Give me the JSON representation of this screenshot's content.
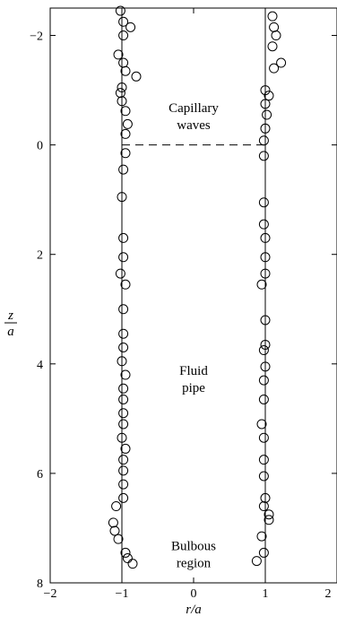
{
  "chart_data": {
    "type": "scatter",
    "title": "",
    "xlabel": "r/a",
    "ylabel_num": "z",
    "ylabel_den": "a",
    "xlim": [
      -2,
      2
    ],
    "ylim": [
      8,
      -2.5
    ],
    "y_inverted": true,
    "grid": false,
    "legend": "none",
    "x_ticks": [
      "−2",
      "−1",
      "0",
      "1",
      "2"
    ],
    "x_tick_values": [
      -2,
      -1,
      0,
      1,
      2
    ],
    "y_ticks": [
      "−2",
      "0",
      "2",
      "4",
      "6",
      "8"
    ],
    "y_tick_values": [
      -2,
      0,
      2,
      4,
      6,
      8
    ],
    "reference_lines": [
      {
        "style": "solid",
        "x": -1
      },
      {
        "style": "solid",
        "x": 1
      },
      {
        "style": "dashed",
        "y": 0,
        "x_range": [
          -1,
          1
        ]
      }
    ],
    "annotations": [
      {
        "lines": [
          "Capillary",
          "waves"
        ],
        "x": 0,
        "y": -0.6
      },
      {
        "lines": [
          "Fluid",
          "pipe"
        ],
        "x": 0,
        "y": 4.2
      },
      {
        "lines": [
          "Bulbous",
          "region"
        ],
        "x": 0,
        "y": 7.4
      }
    ],
    "series": [
      {
        "marker": "open-circle",
        "points": [
          [
            -1.02,
            -2.45
          ],
          [
            -0.98,
            -2.25
          ],
          [
            -0.88,
            -2.15
          ],
          [
            -0.98,
            -2.0
          ],
          [
            -1.05,
            -1.65
          ],
          [
            -0.98,
            -1.5
          ],
          [
            -0.95,
            -1.35
          ],
          [
            -0.8,
            -1.25
          ],
          [
            -1.0,
            -1.05
          ],
          [
            -1.02,
            -0.95
          ],
          [
            -1.0,
            -0.8
          ],
          [
            -0.95,
            -0.62
          ],
          [
            -0.92,
            -0.38
          ],
          [
            -0.95,
            -0.2
          ],
          [
            -0.95,
            0.15
          ],
          [
            -0.98,
            0.45
          ],
          [
            -1.0,
            0.95
          ],
          [
            -0.98,
            1.7
          ],
          [
            -0.98,
            2.05
          ],
          [
            -1.02,
            2.35
          ],
          [
            -0.95,
            2.55
          ],
          [
            -0.98,
            3.0
          ],
          [
            -0.98,
            3.45
          ],
          [
            -0.98,
            3.7
          ],
          [
            -1.0,
            3.95
          ],
          [
            -0.95,
            4.2
          ],
          [
            -0.98,
            4.45
          ],
          [
            -0.98,
            4.65
          ],
          [
            -0.98,
            4.9
          ],
          [
            -0.98,
            5.1
          ],
          [
            -1.0,
            5.35
          ],
          [
            -0.95,
            5.55
          ],
          [
            -0.98,
            5.75
          ],
          [
            -0.98,
            5.95
          ],
          [
            -0.98,
            6.2
          ],
          [
            -0.98,
            6.45
          ],
          [
            -1.08,
            6.6
          ],
          [
            -1.12,
            6.9
          ],
          [
            -1.1,
            7.05
          ],
          [
            -1.05,
            7.2
          ],
          [
            -0.95,
            7.45
          ],
          [
            -0.92,
            7.55
          ],
          [
            -0.85,
            7.65
          ],
          [
            1.1,
            -2.35
          ],
          [
            1.12,
            -2.15
          ],
          [
            1.15,
            -2.0
          ],
          [
            1.1,
            -1.8
          ],
          [
            1.22,
            -1.5
          ],
          [
            1.12,
            -1.4
          ],
          [
            1.0,
            -1.0
          ],
          [
            1.05,
            -0.9
          ],
          [
            1.0,
            -0.75
          ],
          [
            1.02,
            -0.55
          ],
          [
            1.0,
            -0.3
          ],
          [
            0.98,
            -0.08
          ],
          [
            0.98,
            0.2
          ],
          [
            0.98,
            1.05
          ],
          [
            0.98,
            1.45
          ],
          [
            1.0,
            1.7
          ],
          [
            1.0,
            2.05
          ],
          [
            1.0,
            2.35
          ],
          [
            0.95,
            2.55
          ],
          [
            1.0,
            3.2
          ],
          [
            1.0,
            3.65
          ],
          [
            0.98,
            3.75
          ],
          [
            1.0,
            4.05
          ],
          [
            0.98,
            4.3
          ],
          [
            0.98,
            4.65
          ],
          [
            0.95,
            5.1
          ],
          [
            0.98,
            5.35
          ],
          [
            0.98,
            5.75
          ],
          [
            0.98,
            6.05
          ],
          [
            1.0,
            6.45
          ],
          [
            0.98,
            6.6
          ],
          [
            1.05,
            6.75
          ],
          [
            1.05,
            6.85
          ],
          [
            0.95,
            7.15
          ],
          [
            0.98,
            7.45
          ],
          [
            0.88,
            7.6
          ]
        ]
      }
    ]
  }
}
